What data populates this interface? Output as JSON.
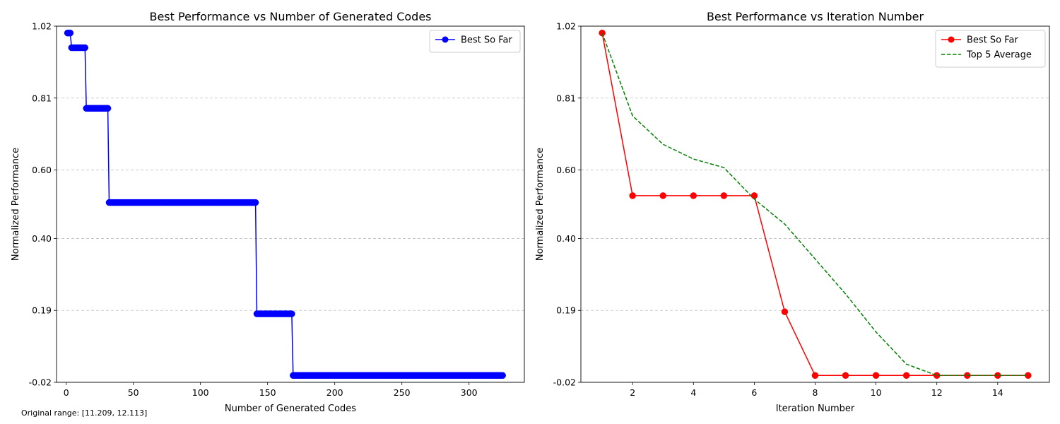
{
  "footnote": "Original range: [11.209, 12.113]",
  "chart_data": [
    {
      "type": "line",
      "title": "Best Performance vs Number of Generated Codes",
      "xlabel": "Number of Generated Codes",
      "ylabel": "Normalized Performance",
      "xlim": [
        -7.2,
        341.2
      ],
      "ylim": [
        -0.02,
        1.02
      ],
      "x_ticks": [
        0,
        50,
        100,
        150,
        200,
        250,
        300
      ],
      "x_tick_labels": [
        "0",
        "50",
        "100",
        "150",
        "200",
        "250",
        "300"
      ],
      "y_ticks": [
        -0.02,
        0.19,
        0.4,
        0.6,
        0.81,
        1.02
      ],
      "y_tick_labels": [
        "-0.02",
        "0.19",
        "0.40",
        "0.60",
        "0.81",
        "1.02"
      ],
      "grid": "y-dashed",
      "legend": "top-right",
      "series": [
        {
          "name": "Best So Far",
          "color": "#0000ff",
          "line_style": "solid",
          "marker": "circle",
          "steps": [
            {
              "from": 1,
              "to": 3,
              "y": 1.0
            },
            {
              "from": 4,
              "to": 14,
              "y": 0.957
            },
            {
              "from": 15,
              "to": 31,
              "y": 0.78
            },
            {
              "from": 32,
              "to": 141,
              "y": 0.505
            },
            {
              "from": 142,
              "to": 168,
              "y": 0.18
            },
            {
              "from": 169,
              "to": 325,
              "y": 0.0
            }
          ]
        }
      ]
    },
    {
      "type": "line",
      "title": "Best Performance vs Iteration Number",
      "xlabel": "Iteration Number",
      "ylabel": "Normalized Performance",
      "xlim": [
        0.3,
        15.7
      ],
      "ylim": [
        -0.02,
        1.02
      ],
      "x_ticks": [
        2,
        4,
        6,
        8,
        10,
        12,
        14
      ],
      "x_tick_labels": [
        "2",
        "4",
        "6",
        "8",
        "10",
        "12",
        "14"
      ],
      "y_ticks": [
        -0.02,
        0.19,
        0.4,
        0.6,
        0.81,
        1.02
      ],
      "y_tick_labels": [
        "-0.02",
        "0.19",
        "0.40",
        "0.60",
        "0.81",
        "1.02"
      ],
      "grid": "y-dashed",
      "legend": "top-right",
      "x": [
        1,
        2,
        3,
        4,
        5,
        6,
        7,
        8,
        9,
        10,
        11,
        12,
        13,
        14,
        15
      ],
      "series": [
        {
          "name": "Best So Far",
          "color": "#ff0000",
          "line_style": "solid",
          "marker": "circle",
          "values": [
            1.0,
            0.525,
            0.525,
            0.525,
            0.525,
            0.525,
            0.186,
            0.0,
            0.0,
            0.0,
            0.0,
            0.0,
            0.0,
            0.0,
            0.0
          ]
        },
        {
          "name": "Top 5 Average",
          "color": "#008000",
          "line_style": "dashed",
          "marker": "none",
          "values": [
            1.0,
            0.758,
            0.675,
            0.632,
            0.607,
            0.515,
            0.442,
            0.34,
            0.238,
            0.127,
            0.033,
            0.0,
            0.0,
            0.0,
            0.0
          ]
        }
      ]
    }
  ]
}
